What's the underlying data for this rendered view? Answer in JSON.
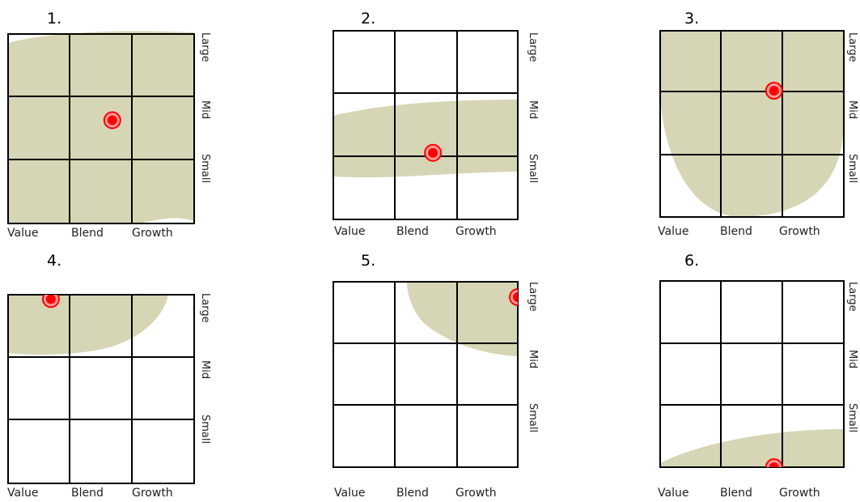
{
  "axes": {
    "x_labels": [
      "Value",
      "Blend",
      "Growth"
    ],
    "y_labels": [
      "Large",
      "Mid",
      "Small"
    ]
  },
  "colors": {
    "region": "#d6d5b5",
    "marker": "#ff0000",
    "grid": "#000000"
  },
  "panels": [
    {
      "number": "1.",
      "marker": {
        "x": 0.56,
        "y": 0.545
      }
    },
    {
      "number": "2.",
      "marker": {
        "x": 0.54,
        "y": 0.353
      }
    },
    {
      "number": "3.",
      "marker": {
        "x": 0.62,
        "y": 0.678
      }
    },
    {
      "number": "4.",
      "marker": {
        "x": 0.23,
        "y": 0.977
      }
    },
    {
      "number": "5.",
      "marker": {
        "x": 1.0,
        "y": 0.917
      }
    },
    {
      "number": "6.",
      "marker": {
        "x": 0.62,
        "y": 0.0
      }
    }
  ]
}
